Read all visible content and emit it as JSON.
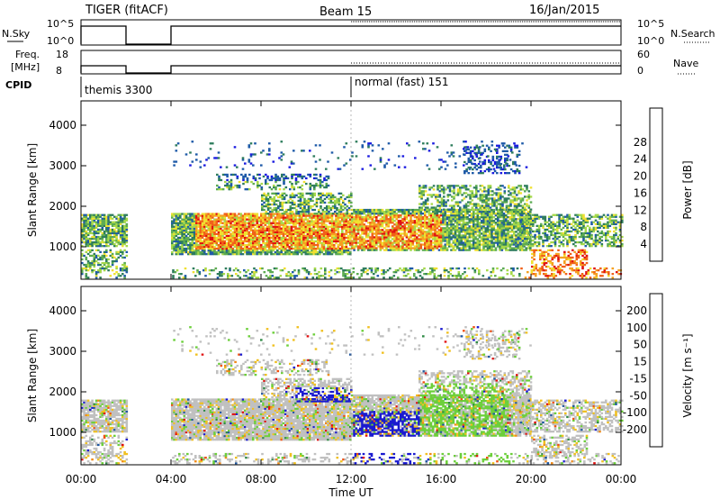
{
  "header": {
    "station": "TIGER (fitACF)",
    "beam": "Beam 15",
    "date": "16/Jan/2015"
  },
  "top_panels": {
    "nsky_label": "N.Sky",
    "nsky_ticks": [
      "10^5",
      "10^0"
    ],
    "nsearch_label": "N.Search",
    "nsearch_ticks": [
      "10^5",
      "10^0"
    ],
    "freq_label_1": "Freq.",
    "freq_label_2": "[MHz]",
    "freq_ticks": [
      "18",
      "8"
    ],
    "nave_label": "Nave",
    "nave_ticks": [
      "60",
      "0"
    ],
    "cpid_label": "CPID",
    "cpid_segments": [
      "themis 3300",
      "normal (fast) 151"
    ]
  },
  "chart_data": [
    {
      "type": "heatmap",
      "parameter": "Power",
      "ylabel": "Slant Range [km]",
      "ylim": [
        200,
        4600
      ],
      "yticks": [
        1000,
        2000,
        3000,
        4000
      ],
      "xlim_hours": [
        0,
        24
      ],
      "colorbar_label": "Power [dB]",
      "colorbar_ticks": [
        "4",
        "8",
        "12",
        "16",
        "20",
        "24",
        "28"
      ],
      "colorbar_colors": [
        "#1a1ae0",
        "#1e5aa8",
        "#2e7d5c",
        "#5cab52",
        "#a6d94a",
        "#f0e030",
        "#f5a020",
        "#f06018",
        "#e01010"
      ],
      "data_gaps_hours": [
        [
          2.0,
          4.0
        ]
      ]
    },
    {
      "type": "heatmap",
      "parameter": "Velocity",
      "ylabel": "Slant Range [km]",
      "ylim": [
        200,
        4600
      ],
      "yticks": [
        1000,
        2000,
        3000,
        4000
      ],
      "xlim_hours": [
        0,
        24
      ],
      "colorbar_label": "Velocity [m s⁻¹]",
      "colorbar_ticks": [
        "200",
        "100",
        "50",
        "15",
        "-15",
        "-50",
        "-100",
        "-200"
      ],
      "colorbar_colors": [
        "#1a1ad0",
        "#1e56a0",
        "#2e8a44",
        "#6ccf3a",
        "#c0c0c0",
        "#f0c020",
        "#f08a18",
        "#f05010",
        "#e01010"
      ],
      "data_gaps_hours": [
        [
          2.0,
          4.0
        ]
      ]
    }
  ],
  "time_axis": {
    "ticks": [
      "00:00",
      "04:00",
      "08:00",
      "12:00",
      "16:00",
      "20:00",
      "00:00"
    ],
    "label": "Time UT"
  }
}
